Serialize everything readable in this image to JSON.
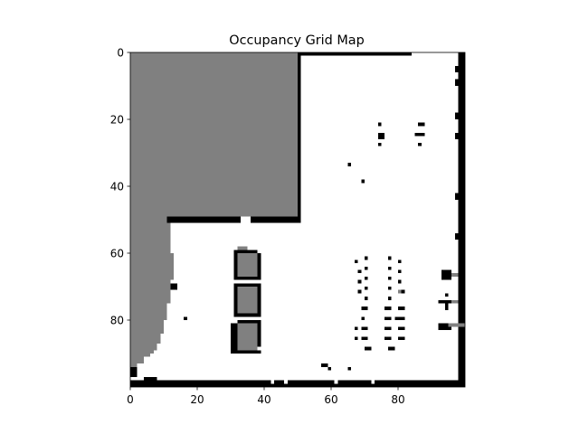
{
  "chart_data": {
    "type": "heatmap",
    "title": "Occupancy Grid Map",
    "xlabel": "",
    "ylabel": "",
    "grid_size": [
      100,
      100
    ],
    "xlim": [
      0,
      100
    ],
    "ylim": [
      100,
      0
    ],
    "x_ticks": [
      0,
      20,
      40,
      60,
      80
    ],
    "y_ticks": [
      0,
      20,
      40,
      60,
      80
    ],
    "x_tick_labels": [
      "0",
      "20",
      "40",
      "60",
      "80"
    ],
    "y_tick_labels": [
      "0",
      "20",
      "40",
      "60",
      "80"
    ],
    "grid": false,
    "colormap": "gray_r",
    "value_legend": {
      "free": 0.0,
      "unknown": 0.5,
      "occupied": 1.0
    },
    "colors": {
      "free": "#ffffff",
      "unknown": "#808080",
      "occupied": "#000000"
    },
    "regions": [
      {
        "label": "unknown",
        "x": [
          0,
          50
        ],
        "y": [
          0,
          49
        ]
      },
      {
        "label": "unknown",
        "x": [
          0,
          12
        ],
        "y": [
          49,
          60
        ]
      },
      {
        "label": "unknown",
        "x": [
          0,
          13
        ],
        "y": [
          60,
          68
        ]
      },
      {
        "label": "unknown",
        "x": [
          0,
          12
        ],
        "y": [
          68,
          73
        ]
      },
      {
        "label": "unknown",
        "x": [
          0,
          11
        ],
        "y": [
          73,
          80
        ]
      },
      {
        "label": "unknown",
        "x": [
          0,
          10
        ],
        "y": [
          80,
          84
        ]
      },
      {
        "label": "unknown",
        "x": [
          0,
          9
        ],
        "y": [
          84,
          87
        ]
      },
      {
        "label": "unknown",
        "x": [
          0,
          8
        ],
        "y": [
          87,
          89
        ]
      },
      {
        "label": "unknown",
        "x": [
          0,
          7
        ],
        "y": [
          89,
          90
        ]
      },
      {
        "label": "unknown",
        "x": [
          0,
          6
        ],
        "y": [
          90,
          91
        ]
      },
      {
        "label": "unknown",
        "x": [
          0,
          4
        ],
        "y": [
          91,
          93
        ]
      },
      {
        "label": "unknown",
        "x": [
          0,
          2
        ],
        "y": [
          93,
          94
        ]
      },
      {
        "label": "occupied",
        "x": [
          50,
          84
        ],
        "y": [
          0,
          1
        ]
      },
      {
        "label": "occupied",
        "x": [
          50,
          51
        ],
        "y": [
          0,
          50
        ]
      },
      {
        "label": "occupied",
        "x": [
          11,
          33
        ],
        "y": [
          49,
          51
        ]
      },
      {
        "label": "occupied",
        "x": [
          36,
          51
        ],
        "y": [
          49,
          51
        ]
      },
      {
        "label": "occupied",
        "x": [
          98,
          100
        ],
        "y": [
          0,
          100
        ]
      },
      {
        "label": "occupied",
        "x": [
          97,
          98
        ],
        "y": [
          4,
          6
        ]
      },
      {
        "label": "occupied",
        "x": [
          97,
          98
        ],
        "y": [
          8,
          10
        ]
      },
      {
        "label": "occupied",
        "x": [
          97,
          98
        ],
        "y": [
          18,
          20
        ]
      },
      {
        "label": "occupied",
        "x": [
          97,
          98
        ],
        "y": [
          24,
          26
        ]
      },
      {
        "label": "occupied",
        "x": [
          97,
          98
        ],
        "y": [
          42,
          44
        ]
      },
      {
        "label": "occupied",
        "x": [
          97,
          98
        ],
        "y": [
          54,
          56
        ]
      },
      {
        "label": "occupied",
        "x": [
          0,
          98
        ],
        "y": [
          98,
          100
        ]
      },
      {
        "label": "free",
        "x": [
          42,
          43
        ],
        "y": [
          98,
          99
        ]
      },
      {
        "label": "free",
        "x": [
          46,
          47
        ],
        "y": [
          98,
          99
        ]
      },
      {
        "label": "free",
        "x": [
          61,
          62
        ],
        "y": [
          98,
          99
        ]
      },
      {
        "label": "free",
        "x": [
          72,
          73
        ],
        "y": [
          98,
          99
        ]
      },
      {
        "label": "unknown",
        "x": [
          32,
          38
        ],
        "y": [
          60,
          67
        ]
      },
      {
        "label": "occupied",
        "x": [
          31,
          32
        ],
        "y": [
          60,
          68
        ]
      },
      {
        "label": "occupied",
        "x": [
          38,
          39
        ],
        "y": [
          60,
          68
        ]
      },
      {
        "label": "occupied",
        "x": [
          31,
          39
        ],
        "y": [
          67,
          68
        ]
      },
      {
        "label": "occupied",
        "x": [
          32,
          38
        ],
        "y": [
          59,
          60
        ]
      },
      {
        "label": "unknown",
        "x": [
          32,
          38
        ],
        "y": [
          70,
          78
        ]
      },
      {
        "label": "occupied",
        "x": [
          31,
          32
        ],
        "y": [
          69,
          79
        ]
      },
      {
        "label": "occupied",
        "x": [
          38,
          39
        ],
        "y": [
          69,
          79
        ]
      },
      {
        "label": "occupied",
        "x": [
          31,
          39
        ],
        "y": [
          78,
          79
        ]
      },
      {
        "label": "occupied",
        "x": [
          31,
          38
        ],
        "y": [
          69,
          70
        ]
      },
      {
        "label": "unknown",
        "x": [
          32,
          38
        ],
        "y": [
          81,
          89
        ]
      },
      {
        "label": "occupied",
        "x": [
          30,
          32
        ],
        "y": [
          81,
          90
        ]
      },
      {
        "label": "occupied",
        "x": [
          38,
          39
        ],
        "y": [
          80,
          88
        ]
      },
      {
        "label": "occupied",
        "x": [
          30,
          39
        ],
        "y": [
          89,
          90
        ]
      },
      {
        "label": "occupied",
        "x": [
          32,
          39
        ],
        "y": [
          80,
          81
        ]
      },
      {
        "label": "unknown",
        "x": [
          32,
          35
        ],
        "y": [
          58,
          59
        ]
      },
      {
        "label": "occupied",
        "x": [
          31,
          33
        ],
        "y": [
          59,
          60
        ]
      },
      {
        "label": "occupied",
        "x": [
          12,
          14
        ],
        "y": [
          69,
          71
        ]
      },
      {
        "label": "unknown",
        "x": [
          11,
          12
        ],
        "y": [
          71,
          75
        ]
      },
      {
        "label": "occupied",
        "x": [
          16,
          17
        ],
        "y": [
          79,
          80
        ]
      },
      {
        "label": "occupied",
        "x": [
          0,
          2
        ],
        "y": [
          94,
          97
        ]
      },
      {
        "label": "occupied",
        "x": [
          4,
          8
        ],
        "y": [
          97,
          98
        ]
      },
      {
        "label": "occupied",
        "x": [
          57,
          59
        ],
        "y": [
          93,
          94
        ]
      },
      {
        "label": "occupied",
        "x": [
          59,
          60
        ],
        "y": [
          94,
          95
        ]
      },
      {
        "label": "occupied",
        "x": [
          65,
          66
        ],
        "y": [
          94,
          95
        ]
      },
      {
        "label": "occupied",
        "x": [
          65,
          66
        ],
        "y": [
          33,
          34
        ]
      },
      {
        "label": "occupied",
        "x": [
          69,
          70
        ],
        "y": [
          38,
          39
        ]
      },
      {
        "label": "occupied",
        "x": [
          74,
          75
        ],
        "y": [
          21,
          22
        ]
      },
      {
        "label": "occupied",
        "x": [
          74,
          76
        ],
        "y": [
          24,
          26
        ]
      },
      {
        "label": "occupied",
        "x": [
          74,
          75
        ],
        "y": [
          27,
          28
        ]
      },
      {
        "label": "occupied",
        "x": [
          86,
          88
        ],
        "y": [
          21,
          22
        ]
      },
      {
        "label": "occupied",
        "x": [
          85,
          88
        ],
        "y": [
          24,
          25
        ]
      },
      {
        "label": "occupied",
        "x": [
          86,
          87
        ],
        "y": [
          27,
          28
        ]
      },
      {
        "label": "occupied",
        "x": [
          67,
          68
        ],
        "y": [
          62,
          63
        ]
      },
      {
        "label": "occupied",
        "x": [
          70,
          71
        ],
        "y": [
          61,
          62
        ]
      },
      {
        "label": "occupied",
        "x": [
          70,
          71
        ],
        "y": [
          64,
          65
        ]
      },
      {
        "label": "occupied",
        "x": [
          68,
          69
        ],
        "y": [
          65,
          66
        ]
      },
      {
        "label": "occupied",
        "x": [
          70,
          71
        ],
        "y": [
          67,
          68
        ]
      },
      {
        "label": "occupied",
        "x": [
          68,
          69
        ],
        "y": [
          68,
          69
        ]
      },
      {
        "label": "occupied",
        "x": [
          70,
          71
        ],
        "y": [
          70,
          71
        ]
      },
      {
        "label": "occupied",
        "x": [
          68,
          69
        ],
        "y": [
          71,
          72
        ]
      },
      {
        "label": "occupied",
        "x": [
          70,
          71
        ],
        "y": [
          73,
          74
        ]
      },
      {
        "label": "occupied",
        "x": [
          69,
          71
        ],
        "y": [
          76,
          77
        ]
      },
      {
        "label": "occupied",
        "x": [
          69,
          70
        ],
        "y": [
          79,
          80
        ]
      },
      {
        "label": "occupied",
        "x": [
          67,
          68
        ],
        "y": [
          82,
          83
        ]
      },
      {
        "label": "occupied",
        "x": [
          69,
          71
        ],
        "y": [
          82,
          83
        ]
      },
      {
        "label": "occupied",
        "x": [
          67,
          68
        ],
        "y": [
          85,
          86
        ]
      },
      {
        "label": "occupied",
        "x": [
          69,
          71
        ],
        "y": [
          85,
          86
        ]
      },
      {
        "label": "occupied",
        "x": [
          70,
          72
        ],
        "y": [
          88,
          89
        ]
      },
      {
        "label": "occupied",
        "x": [
          77,
          78
        ],
        "y": [
          61,
          62
        ]
      },
      {
        "label": "occupied",
        "x": [
          80,
          81
        ],
        "y": [
          62,
          63
        ]
      },
      {
        "label": "occupied",
        "x": [
          77,
          78
        ],
        "y": [
          64,
          65
        ]
      },
      {
        "label": "occupied",
        "x": [
          80,
          81
        ],
        "y": [
          65,
          66
        ]
      },
      {
        "label": "occupied",
        "x": [
          77,
          78
        ],
        "y": [
          67,
          68
        ]
      },
      {
        "label": "occupied",
        "x": [
          80,
          81
        ],
        "y": [
          68,
          69
        ]
      },
      {
        "label": "occupied",
        "x": [
          77,
          78
        ],
        "y": [
          70,
          71
        ]
      },
      {
        "label": "occupied",
        "x": [
          81,
          82
        ],
        "y": [
          71,
          72
        ]
      },
      {
        "label": "unknown",
        "x": [
          80,
          81
        ],
        "y": [
          71,
          72
        ]
      },
      {
        "label": "occupied",
        "x": [
          77,
          78
        ],
        "y": [
          73,
          74
        ]
      },
      {
        "label": "occupied",
        "x": [
          76,
          78
        ],
        "y": [
          76,
          77
        ]
      },
      {
        "label": "occupied",
        "x": [
          80,
          82
        ],
        "y": [
          76,
          77
        ]
      },
      {
        "label": "occupied",
        "x": [
          76,
          78
        ],
        "y": [
          79,
          80
        ]
      },
      {
        "label": "occupied",
        "x": [
          79,
          82
        ],
        "y": [
          79,
          80
        ]
      },
      {
        "label": "occupied",
        "x": [
          76,
          78
        ],
        "y": [
          82,
          83
        ]
      },
      {
        "label": "occupied",
        "x": [
          80,
          82
        ],
        "y": [
          82,
          83
        ]
      },
      {
        "label": "occupied",
        "x": [
          76,
          78
        ],
        "y": [
          85,
          86
        ]
      },
      {
        "label": "occupied",
        "x": [
          80,
          82
        ],
        "y": [
          85,
          86
        ]
      },
      {
        "label": "occupied",
        "x": [
          77,
          79
        ],
        "y": [
          88,
          89
        ]
      },
      {
        "label": "occupied",
        "x": [
          93,
          96
        ],
        "y": [
          65,
          68
        ]
      },
      {
        "label": "unknown",
        "x": [
          96,
          98
        ],
        "y": [
          66,
          67
        ]
      },
      {
        "label": "occupied",
        "x": [
          94,
          95
        ],
        "y": [
          72,
          73
        ]
      },
      {
        "label": "occupied",
        "x": [
          92,
          96
        ],
        "y": [
          74,
          75
        ]
      },
      {
        "label": "unknown",
        "x": [
          96,
          98
        ],
        "y": [
          74,
          75
        ]
      },
      {
        "label": "occupied",
        "x": [
          94,
          95
        ],
        "y": [
          75,
          77
        ]
      },
      {
        "label": "occupied",
        "x": [
          92,
          96
        ],
        "y": [
          81,
          83
        ]
      },
      {
        "label": "unknown",
        "x": [
          95,
          100
        ],
        "y": [
          81,
          82
        ]
      }
    ]
  }
}
